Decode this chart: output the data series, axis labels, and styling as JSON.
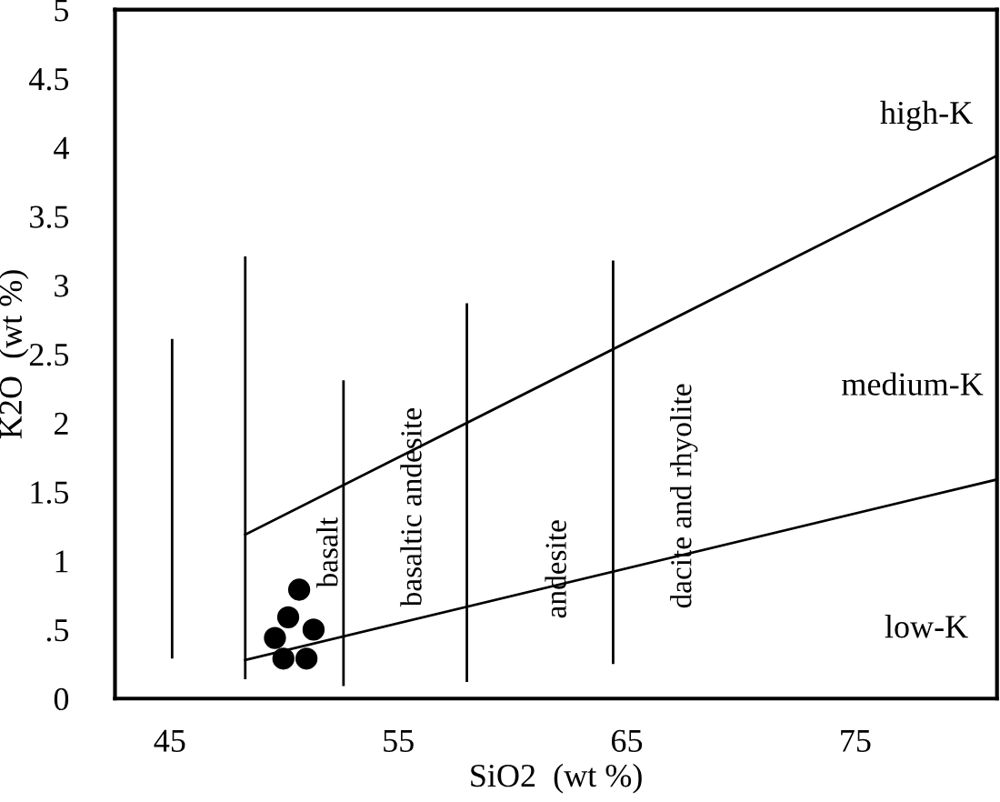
{
  "chart_data": {
    "type": "line",
    "xlabel": "SiO2  (wt %)",
    "ylabel": "K2O  (wt %)",
    "xlim": [
      42.6,
      81.2
    ],
    "ylim": [
      0,
      5
    ],
    "xticks": [
      45,
      55,
      65,
      75
    ],
    "yticks": [
      0,
      {
        "value": 0.5,
        "label": ".5"
      },
      1,
      1.5,
      2,
      2.5,
      3,
      3.5,
      4,
      4.5,
      5
    ],
    "grid": false,
    "legend": false,
    "line_style": "solid",
    "marker": "none",
    "series": [
      {
        "color": "#000000",
        "x": [
          45.1,
          45.1
        ],
        "values": [
          0.3,
          2.6
        ]
      },
      {
        "color": "#000000",
        "x": [
          48.3,
          48.3
        ],
        "values": [
          0.15,
          3.2
        ]
      },
      {
        "color": "#000000",
        "x": [
          52.6,
          52.6
        ],
        "values": [
          0.1,
          2.3
        ]
      },
      {
        "color": "#000000",
        "x": [
          58,
          58
        ],
        "values": [
          0.13,
          2.86
        ]
      },
      {
        "color": "#000000",
        "x": [
          64.4,
          64.4
        ],
        "values": [
          0.26,
          3.17
        ]
      },
      {
        "color": "#000000",
        "x": [
          48.3,
          81.2
        ],
        "values": [
          1.19,
          3.94
        ]
      },
      {
        "color": "#000000",
        "x": [
          48.3,
          81.2
        ],
        "values": [
          0.28,
          1.59
        ]
      },
      {
        "type": "scatter",
        "marker": "circle",
        "color": "#000000",
        "x": [
          50.66,
          50.18,
          49.6,
          51.29,
          49.97,
          50.98
        ],
        "values": [
          0.79,
          0.59,
          0.44,
          0.5,
          0.29,
          0.29
        ]
      }
    ],
    "annotations": [
      "basalt",
      "basaltic andesite",
      "andesite",
      "dacite and rhyolite",
      "high-K",
      "medium-K",
      "low-K"
    ]
  }
}
